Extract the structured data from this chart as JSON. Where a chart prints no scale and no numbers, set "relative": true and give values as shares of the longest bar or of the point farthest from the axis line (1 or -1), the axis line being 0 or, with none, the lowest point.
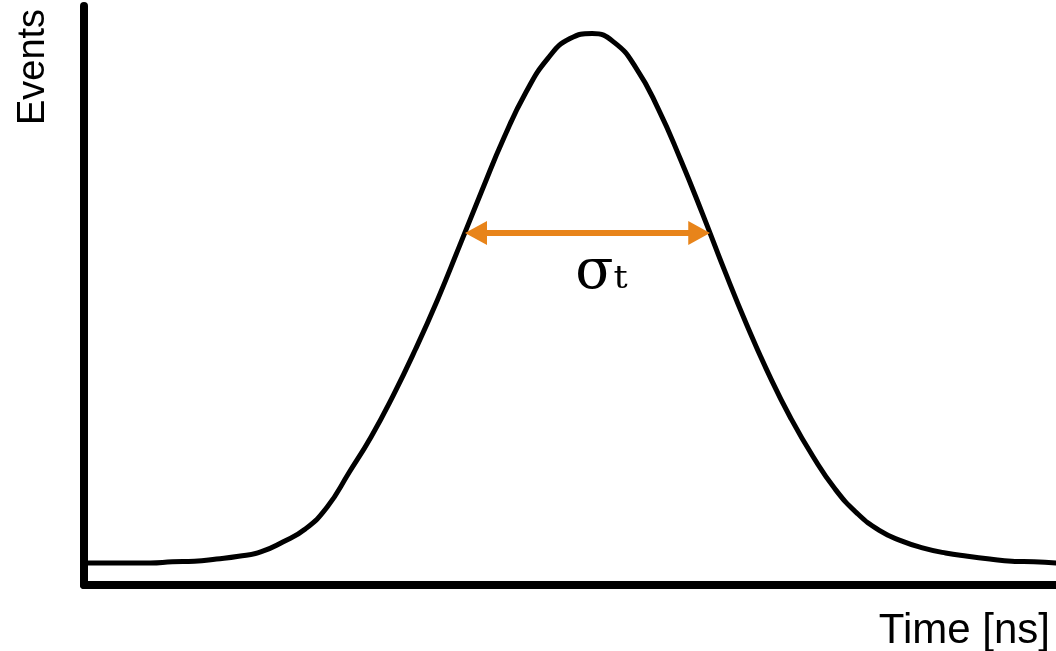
{
  "chart_data": {
    "type": "line",
    "xlabel": "Time [ns]",
    "ylabel": "Events",
    "annotations": [
      "σₜ"
    ],
    "categories": [
      null,
      null,
      null,
      null,
      null,
      null,
      null,
      null,
      null,
      null,
      null,
      null,
      null,
      null,
      null,
      null,
      null,
      null,
      null,
      null,
      null,
      null,
      null,
      null,
      null,
      null,
      null,
      null,
      null,
      null,
      null,
      null,
      null,
      null,
      null,
      null,
      null,
      null,
      null,
      null,
      null,
      null,
      null,
      null,
      null
    ],
    "values": [
      0.04,
      0.04,
      0.04,
      0.04,
      0.042,
      0.043,
      0.047,
      0.052,
      0.06,
      0.078,
      0.101,
      0.141,
      0.204,
      0.269,
      0.344,
      0.427,
      0.517,
      0.615,
      0.714,
      0.81,
      0.893,
      0.955,
      0.991,
      1,
      0.984,
      0.937,
      0.863,
      0.772,
      0.673,
      0.57,
      0.472,
      0.382,
      0.302,
      0.233,
      0.174,
      0.13,
      0.099,
      0.08,
      0.067,
      0.058,
      0.052,
      0.047,
      0.043,
      0.042,
      0.04
    ],
    "color": "#000000",
    "relative": true,
    "grid": false,
    "marker": "none",
    "tick_labels": false
  }
}
